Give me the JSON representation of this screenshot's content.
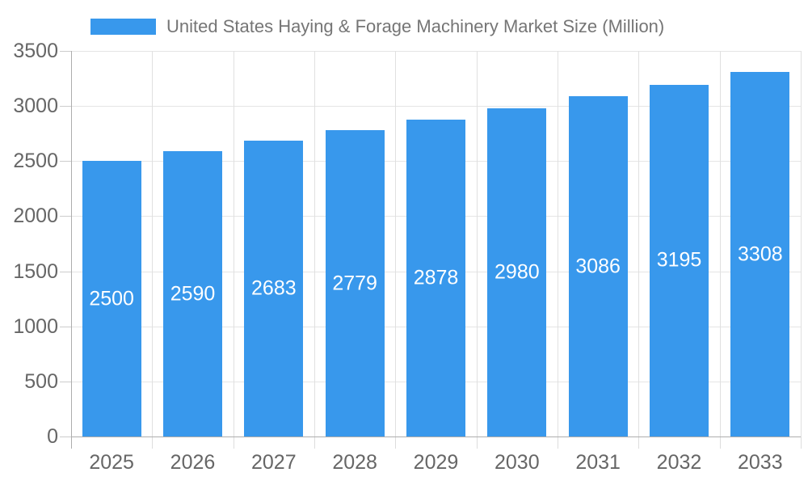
{
  "chart_data": {
    "type": "bar",
    "title": "United States Haying & Forage Machinery Market Size (Million)",
    "legend": {
      "label": "United States Haying & Forage Machinery Market Size (Million)",
      "position": "top-center"
    },
    "categories": [
      "2025",
      "2026",
      "2027",
      "2028",
      "2029",
      "2030",
      "2031",
      "2032",
      "2033"
    ],
    "series": [
      {
        "name": "United States Haying & Forage Machinery Market Size (Million)",
        "values": [
          2500,
          2590,
          2683,
          2779,
          2878,
          2980,
          3086,
          3195,
          3308
        ]
      }
    ],
    "xlabel": "",
    "ylabel": "",
    "ylim": [
      0,
      3500
    ],
    "yticks": [
      0,
      500,
      1000,
      1500,
      2000,
      2500,
      3000,
      3500
    ],
    "grid": true,
    "bar_color": "#3898EC",
    "bar_label_color": "#FFFFFF",
    "axis_text_color": "#666666",
    "title_color": "#757575"
  }
}
